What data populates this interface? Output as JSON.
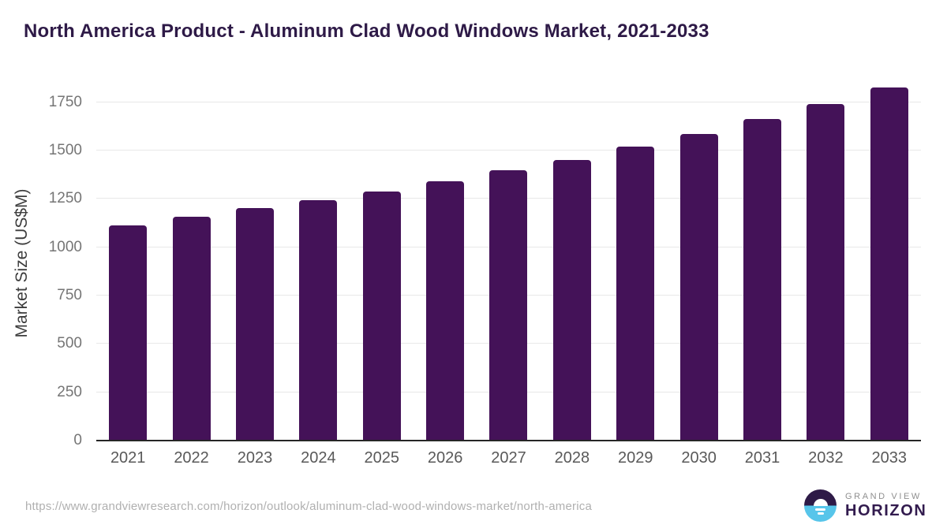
{
  "title": "North America Product - Aluminum Clad Wood Windows Market, 2021-2033",
  "chart_data": {
    "type": "bar",
    "title": "North America Product - Aluminum Clad Wood Windows Market, 2021-2033",
    "categories": [
      "2021",
      "2022",
      "2023",
      "2024",
      "2025",
      "2026",
      "2027",
      "2028",
      "2029",
      "2030",
      "2031",
      "2032",
      "2033"
    ],
    "values": [
      1114,
      1159,
      1201,
      1243,
      1290,
      1342,
      1398,
      1451,
      1520,
      1588,
      1663,
      1741,
      1825
    ],
    "xlabel": "",
    "ylabel": "Market Size (US$M)",
    "ylim": [
      0,
      1851
    ],
    "yticks": [
      0,
      250,
      500,
      750,
      1000,
      1250,
      1500,
      1750
    ],
    "grid": true,
    "legend": "none",
    "bar_color": "#441258"
  },
  "colors": {
    "title": "#2e1a47",
    "bar": "#441258",
    "gridline": "#e8e8e8",
    "axis_line": "#262626",
    "tick_label": "#757575",
    "x_label": "#595959",
    "footer_text": "#b0b0b0",
    "logo_purple": "#2e1a47",
    "logo_blue": "#57c5ea"
  },
  "footer": {
    "source_url": "https://www.grandviewresearch.com/horizon/outlook/aluminum-clad-wood-windows-market/north-america",
    "logo": {
      "line1": "GRAND VIEW",
      "line2": "HORIZON"
    }
  }
}
